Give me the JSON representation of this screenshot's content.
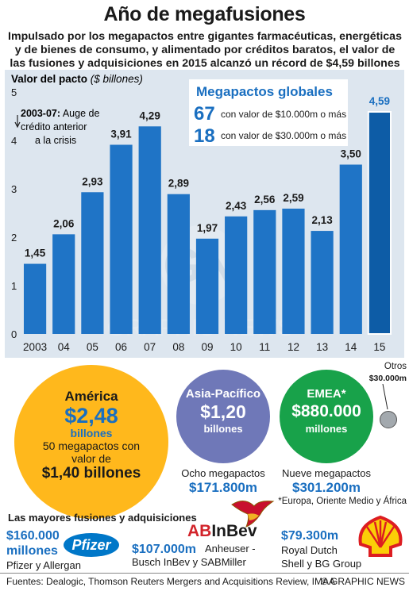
{
  "header": {
    "title": "Año de megafusiones",
    "subtitle": "Impulsado por los megapactos entre gigantes farmacéuticas, energéticas y de bienes de consumo, y alimentado por créditos baratos, el valor de las fusiones y adquisiciones en 2015 alcanzó un récord de $4,59 billones"
  },
  "chart_data": {
    "type": "bar",
    "ylabel_bold": "Valor del pacto",
    "ylabel_unit": "($ billones)",
    "categories": [
      "2003",
      "04",
      "05",
      "06",
      "07",
      "08",
      "09",
      "10",
      "11",
      "12",
      "13",
      "14",
      "15"
    ],
    "values": [
      1.45,
      2.06,
      2.93,
      3.91,
      4.29,
      2.89,
      1.97,
      2.43,
      2.56,
      2.59,
      2.13,
      3.5,
      4.59
    ],
    "value_labels": [
      "1,45",
      "2,06",
      "2,93",
      "3,91",
      "4,29",
      "2,89",
      "1,97",
      "2,43",
      "2,56",
      "2,59",
      "2,13",
      "3,50",
      "4,59"
    ],
    "ylim": [
      0,
      5
    ],
    "yticks": [
      "0",
      "1",
      "2",
      "3",
      "4",
      "5"
    ],
    "grid": false,
    "bar_color": "#1f74c6",
    "highlight_color": "#0d5ca6",
    "annotation": {
      "bold": "2003-07:",
      "line1": " Auge de",
      "line2": "crédito anterior",
      "line3": "a la crisis"
    },
    "megapactos_box": {
      "title": "Megapactos globales",
      "rows": [
        {
          "num": "67",
          "text": "con valor de $10.000m o más"
        },
        {
          "num": "18",
          "text": "con valor de $30.000m o más"
        }
      ]
    },
    "watermark": "GRAPHIC NEWS"
  },
  "regions": {
    "america": {
      "name": "América",
      "value": "$2,48",
      "unit": "billones",
      "line1": "50 megapactos con",
      "line2": "valor de",
      "extra_value": "$1,40 billones"
    },
    "asia": {
      "name": "Asia-Pacífico",
      "value": "$1,20",
      "unit": "billones",
      "deals": "Ocho megapactos",
      "deals_value": "$171.800m"
    },
    "emea": {
      "name": "EMEA*",
      "value": "$880.000",
      "unit": "millones",
      "deals": "Nueve megapactos",
      "deals_value": "$301.200m",
      "footnote": "*Europa, Oriente Medio y África"
    },
    "otros": {
      "name": "Otros",
      "value": "$30.000m"
    }
  },
  "biggest": {
    "heading": "Las mayores fusiones y adquisiciones",
    "deals": [
      {
        "value1": "$160.000",
        "value2": "millones",
        "names": "Pfizer y Allergan",
        "logo": "Pfizer"
      },
      {
        "value": "$107.000m",
        "names1": "Anheuser -",
        "names2": "Busch InBev y SABMiller",
        "logo_ab": "AB",
        "logo_inbev": "InBev"
      },
      {
        "value": "$79.300m",
        "names1": "Royal Dutch",
        "names2": "Shell y BG Group",
        "logo": "shell-icon"
      }
    ]
  },
  "footer": {
    "sources": "Fuentes: Dealogic, Thomson Reuters Mergers and Acquisitions Review, IMAA",
    "credit": "© GRAPHIC NEWS"
  }
}
